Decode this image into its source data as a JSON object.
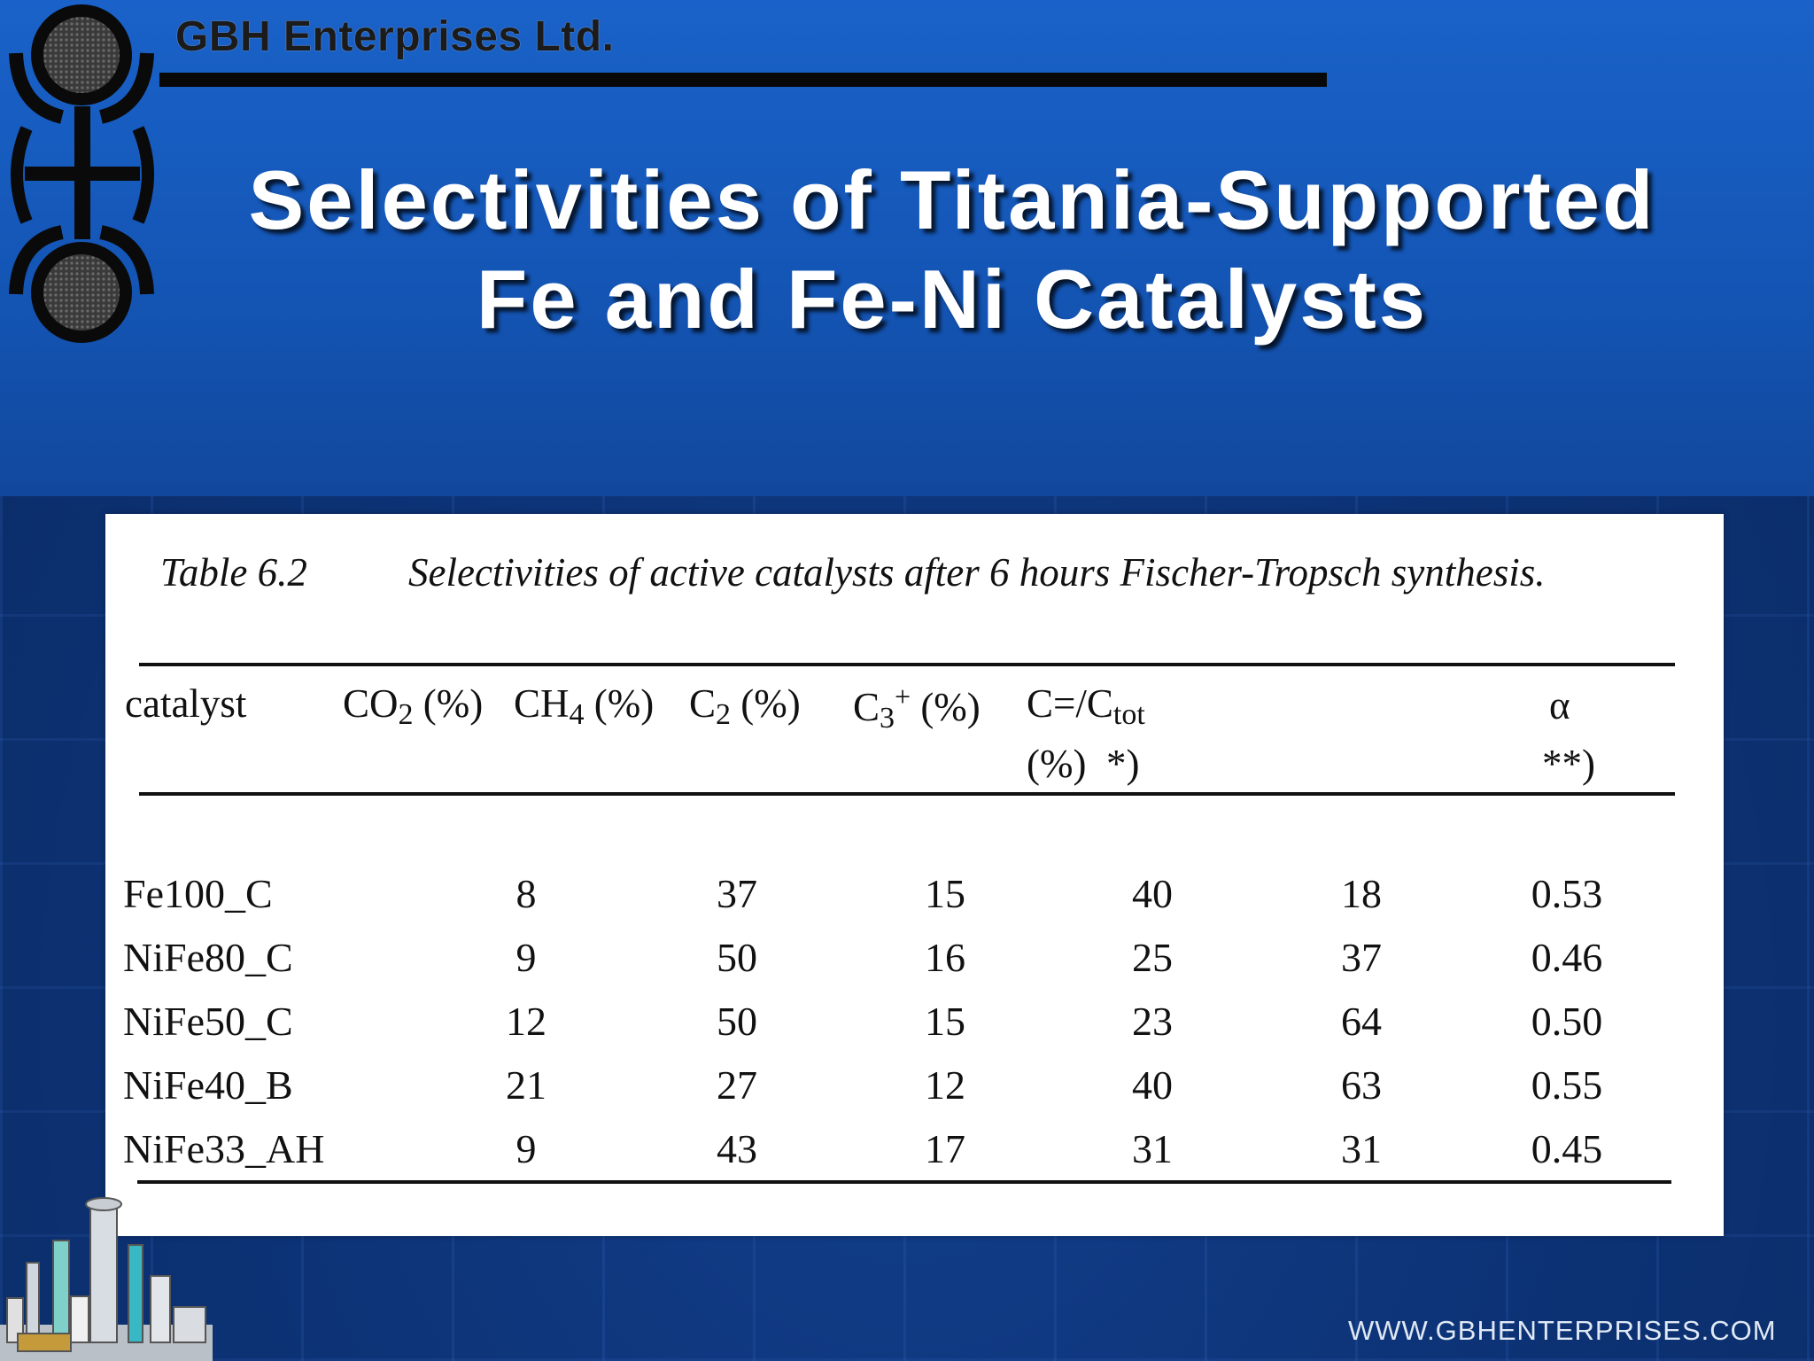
{
  "header": {
    "company": "GBH Enterprises Ltd.",
    "title_line1": "Selectivities of Titania-Supported",
    "title_line2": "Fe and Fe-Ni Catalysts"
  },
  "table": {
    "label": "Table 6.2",
    "caption": "Selectivities of active catalysts after 6 hours Fischer-Tropsch synthesis.",
    "columns": [
      {
        "base": "catalyst",
        "sub": "",
        "sup": "",
        "rest": "",
        "line2": ""
      },
      {
        "base": "CO",
        "sub": "2",
        "sup": "",
        "rest": " (%)",
        "line2": ""
      },
      {
        "base": "CH",
        "sub": "4",
        "sup": "",
        "rest": " (%)",
        "line2": ""
      },
      {
        "base": "C",
        "sub": "2",
        "sup": "",
        "rest": " (%)",
        "line2": ""
      },
      {
        "base": "C",
        "sub": "3",
        "sup": "+",
        "rest": " (%)",
        "line2": ""
      },
      {
        "base": "C=/C",
        "sub": "tot",
        "sup": "",
        "rest": "",
        "line2": "(%)  *)"
      },
      {
        "base": "α",
        "sub": "",
        "sup": "",
        "rest": "",
        "line2": "**)"
      }
    ],
    "rows": [
      [
        "Fe100_C",
        "8",
        "37",
        "15",
        "40",
        "18",
        "0.53"
      ],
      [
        "NiFe80_C",
        "9",
        "50",
        "16",
        "25",
        "37",
        "0.46"
      ],
      [
        "NiFe50_C",
        "12",
        "50",
        "15",
        "23",
        "64",
        "0.50"
      ],
      [
        "NiFe40_B",
        "21",
        "27",
        "12",
        "40",
        "63",
        "0.55"
      ],
      [
        "NiFe33_AH",
        "9",
        "43",
        "17",
        "31",
        "31",
        "0.45"
      ]
    ]
  },
  "footer": {
    "website": "WWW.GBHENTERPRISES.COM"
  },
  "colors": {
    "background_top": "#1a62c9",
    "background_bottom": "#0a2a63",
    "title_text": "#ffffff",
    "header_rule": "#080808"
  }
}
